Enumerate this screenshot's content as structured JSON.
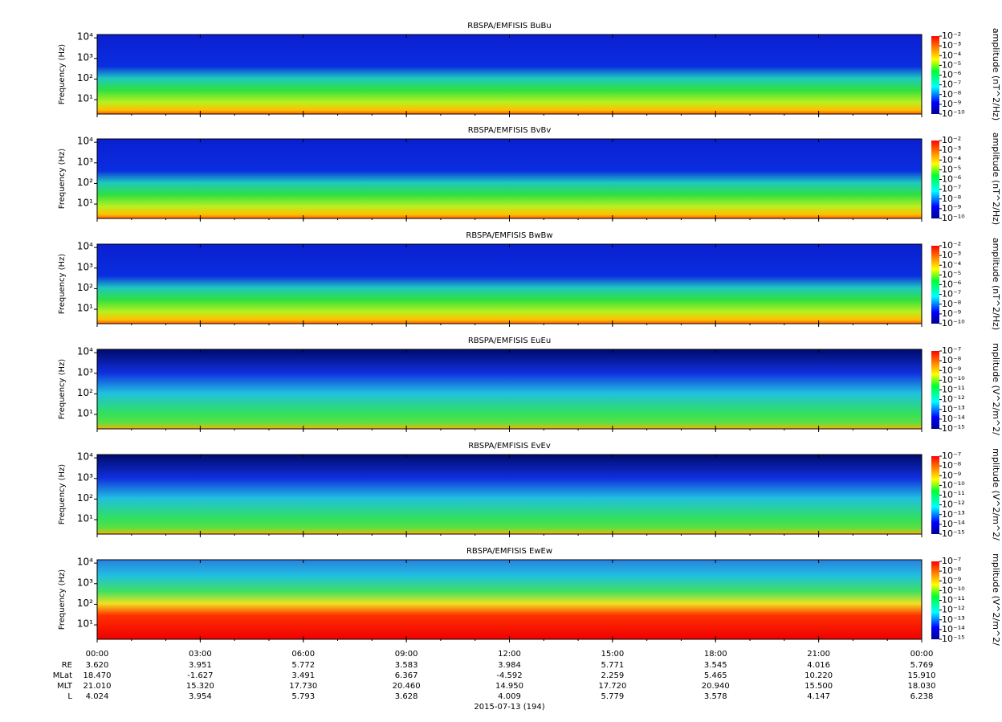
{
  "chart_data": [
    {
      "type": "spectrogram",
      "title": "RBSPA/EMFISIS  BuBu",
      "ylabel": "Frequency (Hz)",
      "log_scale": true,
      "ylim": [
        2,
        14500
      ],
      "yticks": [
        {
          "value": 10,
          "label": "10¹"
        },
        {
          "value": 100,
          "label": "10²"
        },
        {
          "value": 1000,
          "label": "10³"
        },
        {
          "value": 10000,
          "label": "10⁴"
        }
      ],
      "zlabel": "amplitude (nT^2/Hz)",
      "zlim": [
        1e-10,
        0.01
      ],
      "zticks": [
        {
          "value": 0.01,
          "label": "10⁻²"
        },
        {
          "value": 0.001,
          "label": "10⁻³"
        },
        {
          "value": 0.0001,
          "label": "10⁻⁴"
        },
        {
          "value": 1e-05,
          "label": "10⁻⁵"
        },
        {
          "value": 1e-06,
          "label": "10⁻⁶"
        },
        {
          "value": 1e-07,
          "label": "10⁻⁷"
        },
        {
          "value": 1e-08,
          "label": "10⁻⁸"
        },
        {
          "value": 1e-09,
          "label": "10⁻⁹"
        },
        {
          "value": 1e-10,
          "label": "10⁻¹⁰"
        }
      ]
    },
    {
      "type": "spectrogram",
      "title": "RBSPA/EMFISIS  BvBv",
      "ylabel": "Frequency (Hz)",
      "log_scale": true,
      "ylim": [
        2,
        14500
      ],
      "yticks": [
        {
          "value": 10,
          "label": "10¹"
        },
        {
          "value": 100,
          "label": "10²"
        },
        {
          "value": 1000,
          "label": "10³"
        },
        {
          "value": 10000,
          "label": "10⁴"
        }
      ],
      "zlabel": "amplitude (nT^2/Hz)",
      "zlim": [
        1e-10,
        0.01
      ],
      "zticks": [
        {
          "value": 0.01,
          "label": "10⁻²"
        },
        {
          "value": 0.001,
          "label": "10⁻³"
        },
        {
          "value": 0.0001,
          "label": "10⁻⁴"
        },
        {
          "value": 1e-05,
          "label": "10⁻⁵"
        },
        {
          "value": 1e-06,
          "label": "10⁻⁶"
        },
        {
          "value": 1e-07,
          "label": "10⁻⁷"
        },
        {
          "value": 1e-08,
          "label": "10⁻⁸"
        },
        {
          "value": 1e-09,
          "label": "10⁻⁹"
        },
        {
          "value": 1e-10,
          "label": "10⁻¹⁰"
        }
      ]
    },
    {
      "type": "spectrogram",
      "title": "RBSPA/EMFISIS  BwBw",
      "ylabel": "Frequency (Hz)",
      "log_scale": true,
      "ylim": [
        2,
        14500
      ],
      "yticks": [
        {
          "value": 10,
          "label": "10¹"
        },
        {
          "value": 100,
          "label": "10²"
        },
        {
          "value": 1000,
          "label": "10³"
        },
        {
          "value": 10000,
          "label": "10⁴"
        }
      ],
      "zlabel": "amplitude (nT^2/Hz)",
      "zlim": [
        1e-10,
        0.01
      ],
      "zticks": [
        {
          "value": 0.01,
          "label": "10⁻²"
        },
        {
          "value": 0.001,
          "label": "10⁻³"
        },
        {
          "value": 0.0001,
          "label": "10⁻⁴"
        },
        {
          "value": 1e-05,
          "label": "10⁻⁵"
        },
        {
          "value": 1e-06,
          "label": "10⁻⁶"
        },
        {
          "value": 1e-07,
          "label": "10⁻⁷"
        },
        {
          "value": 1e-08,
          "label": "10⁻⁸"
        },
        {
          "value": 1e-09,
          "label": "10⁻⁹"
        },
        {
          "value": 1e-10,
          "label": "10⁻¹⁰"
        }
      ]
    },
    {
      "type": "spectrogram",
      "title": "RBSPA/EMFISIS  EuEu",
      "ylabel": "Frequency (Hz)",
      "log_scale": true,
      "ylim": [
        2,
        14500
      ],
      "yticks": [
        {
          "value": 10,
          "label": "10¹"
        },
        {
          "value": 100,
          "label": "10²"
        },
        {
          "value": 1000,
          "label": "10³"
        },
        {
          "value": 10000,
          "label": "10⁴"
        }
      ],
      "zlabel": "mplitude (V^2/m^2/",
      "zlim": [
        1e-15,
        1e-07
      ],
      "zticks": [
        {
          "value": 1e-07,
          "label": "10⁻⁷"
        },
        {
          "value": 1e-08,
          "label": "10⁻⁸"
        },
        {
          "value": 1e-09,
          "label": "10⁻⁹"
        },
        {
          "value": 1e-10,
          "label": "10⁻¹⁰"
        },
        {
          "value": 1e-11,
          "label": "10⁻¹¹"
        },
        {
          "value": 1e-12,
          "label": "10⁻¹²"
        },
        {
          "value": 1e-13,
          "label": "10⁻¹³"
        },
        {
          "value": 1e-14,
          "label": "10⁻¹⁴"
        },
        {
          "value": 1e-15,
          "label": "10⁻¹⁵"
        }
      ]
    },
    {
      "type": "spectrogram",
      "title": "RBSPA/EMFISIS  EvEv",
      "ylabel": "Frequency (Hz)",
      "log_scale": true,
      "ylim": [
        2,
        14500
      ],
      "yticks": [
        {
          "value": 10,
          "label": "10¹"
        },
        {
          "value": 100,
          "label": "10²"
        },
        {
          "value": 1000,
          "label": "10³"
        },
        {
          "value": 10000,
          "label": "10⁴"
        }
      ],
      "zlabel": "mplitude (V^2/m^2/",
      "zlim": [
        1e-15,
        1e-07
      ],
      "zticks": [
        {
          "value": 1e-07,
          "label": "10⁻⁷"
        },
        {
          "value": 1e-08,
          "label": "10⁻⁸"
        },
        {
          "value": 1e-09,
          "label": "10⁻⁹"
        },
        {
          "value": 1e-10,
          "label": "10⁻¹⁰"
        },
        {
          "value": 1e-11,
          "label": "10⁻¹¹"
        },
        {
          "value": 1e-12,
          "label": "10⁻¹²"
        },
        {
          "value": 1e-13,
          "label": "10⁻¹³"
        },
        {
          "value": 1e-14,
          "label": "10⁻¹⁴"
        },
        {
          "value": 1e-15,
          "label": "10⁻¹⁵"
        }
      ]
    },
    {
      "type": "spectrogram",
      "title": "RBSPA/EMFISIS  EwEw",
      "ylabel": "Frequency (Hz)",
      "log_scale": true,
      "ylim": [
        2,
        14500
      ],
      "yticks": [
        {
          "value": 10,
          "label": "10¹"
        },
        {
          "value": 100,
          "label": "10²"
        },
        {
          "value": 1000,
          "label": "10³"
        },
        {
          "value": 10000,
          "label": "10⁴"
        }
      ],
      "zlabel": "mplitude (V^2/m^2/",
      "zlim": [
        1e-15,
        1e-07
      ],
      "zticks": [
        {
          "value": 1e-07,
          "label": "10⁻⁷"
        },
        {
          "value": 1e-08,
          "label": "10⁻⁸"
        },
        {
          "value": 1e-09,
          "label": "10⁻⁹"
        },
        {
          "value": 1e-10,
          "label": "10⁻¹⁰"
        },
        {
          "value": 1e-11,
          "label": "10⁻¹¹"
        },
        {
          "value": 1e-12,
          "label": "10⁻¹²"
        },
        {
          "value": 1e-13,
          "label": "10⁻¹³"
        },
        {
          "value": 1e-14,
          "label": "10⁻¹⁴"
        },
        {
          "value": 1e-15,
          "label": "10⁻¹⁵"
        }
      ],
      "xlim": [
        0,
        24
      ],
      "xticks": [
        {
          "value": 0,
          "label": "00:00"
        },
        {
          "value": 3,
          "label": "03:00"
        },
        {
          "value": 6,
          "label": "06:00"
        },
        {
          "value": 9,
          "label": "09:00"
        },
        {
          "value": 12,
          "label": "12:00"
        },
        {
          "value": 15,
          "label": "15:00"
        },
        {
          "value": 18,
          "label": "18:00"
        },
        {
          "value": 21,
          "label": "21:00"
        },
        {
          "value": 24,
          "label": "00:00"
        }
      ],
      "xlabel": "2015-07-13 (194)",
      "ephemeris": [
        {
          "name": "RE",
          "values": [
            "3.620",
            "3.951",
            "5.772",
            "3.583",
            "3.984",
            "5.771",
            "3.545",
            "4.016",
            "5.769"
          ]
        },
        {
          "name": "MLat",
          "values": [
            "18.470",
            "-1.627",
            "3.491",
            "6.367",
            "-4.592",
            "2.259",
            "5.465",
            "10.220",
            "15.910"
          ]
        },
        {
          "name": "MLT",
          "values": [
            "21.010",
            "15.320",
            "17.730",
            "20.460",
            "14.950",
            "17.720",
            "20.940",
            "15.500",
            "18.030"
          ]
        },
        {
          "name": "L",
          "values": [
            "4.024",
            "3.954",
            "5.793",
            "3.628",
            "4.009",
            "5.779",
            "3.578",
            "4.147",
            "6.238"
          ]
        }
      ]
    }
  ]
}
